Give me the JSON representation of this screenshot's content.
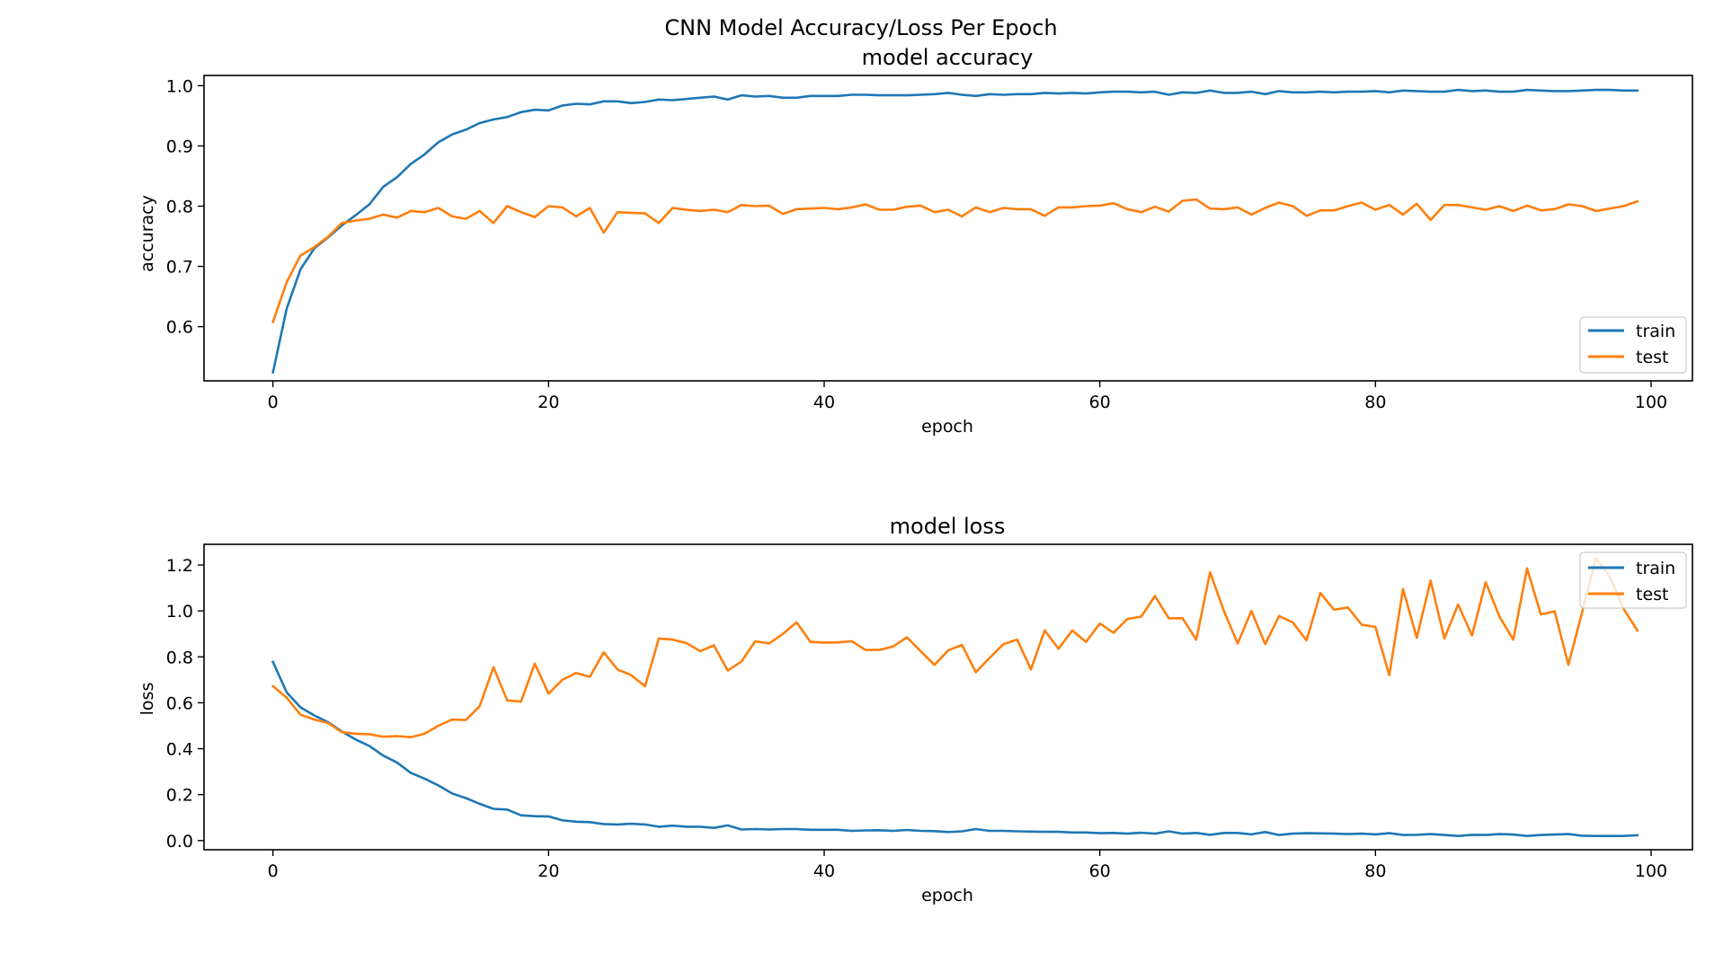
{
  "figure_title": "CNN Model Accuracy/Loss Per Epoch",
  "chart_data": [
    {
      "type": "line",
      "title": "model accuracy",
      "xlabel": "epoch",
      "ylabel": "accuracy",
      "xlim": [
        -5,
        103
      ],
      "ylim": [
        0.51,
        1.017
      ],
      "xticks": [
        0,
        20,
        40,
        60,
        80,
        100
      ],
      "xtick_labels": [
        "0",
        "20",
        "40",
        "60",
        "80",
        "100"
      ],
      "yticks": [
        0.6,
        0.7,
        0.8,
        0.9,
        1.0
      ],
      "ytick_labels": [
        "0.6",
        "0.7",
        "0.8",
        "0.9",
        "1.0"
      ],
      "grid": false,
      "legend_position": "lower-right",
      "x": [
        0,
        1,
        2,
        3,
        4,
        5,
        6,
        7,
        8,
        9,
        10,
        11,
        12,
        13,
        14,
        15,
        16,
        17,
        18,
        19,
        20,
        21,
        22,
        23,
        24,
        25,
        26,
        27,
        28,
        29,
        30,
        31,
        32,
        33,
        34,
        35,
        36,
        37,
        38,
        39,
        40,
        41,
        42,
        43,
        44,
        45,
        46,
        47,
        48,
        49,
        50,
        51,
        52,
        53,
        54,
        55,
        56,
        57,
        58,
        59,
        60,
        61,
        62,
        63,
        64,
        65,
        66,
        67,
        68,
        69,
        70,
        71,
        72,
        73,
        74,
        75,
        76,
        77,
        78,
        79,
        80,
        81,
        82,
        83,
        84,
        85,
        86,
        87,
        88,
        89,
        90,
        91,
        92,
        93,
        94,
        95,
        96,
        97,
        98,
        99
      ],
      "series": [
        {
          "name": "train",
          "color": "#1f77b4",
          "values": [
            0.524,
            0.63,
            0.695,
            0.73,
            0.748,
            0.768,
            0.785,
            0.803,
            0.832,
            0.848,
            0.87,
            0.886,
            0.906,
            0.919,
            0.927,
            0.938,
            0.944,
            0.948,
            0.956,
            0.96,
            0.959,
            0.967,
            0.97,
            0.969,
            0.974,
            0.974,
            0.971,
            0.973,
            0.977,
            0.976,
            0.978,
            0.98,
            0.982,
            0.977,
            0.984,
            0.982,
            0.983,
            0.98,
            0.98,
            0.983,
            0.983,
            0.983,
            0.985,
            0.985,
            0.984,
            0.984,
            0.984,
            0.985,
            0.986,
            0.988,
            0.985,
            0.983,
            0.986,
            0.985,
            0.986,
            0.986,
            0.988,
            0.987,
            0.988,
            0.987,
            0.989,
            0.99,
            0.99,
            0.989,
            0.99,
            0.985,
            0.989,
            0.988,
            0.992,
            0.988,
            0.988,
            0.99,
            0.986,
            0.991,
            0.989,
            0.989,
            0.99,
            0.989,
            0.99,
            0.99,
            0.991,
            0.989,
            0.992,
            0.991,
            0.99,
            0.99,
            0.993,
            0.991,
            0.992,
            0.99,
            0.99,
            0.993,
            0.992,
            0.991,
            0.991,
            0.992,
            0.993,
            0.993,
            0.992,
            0.992
          ]
        },
        {
          "name": "test",
          "color": "#ff7f0e",
          "values": [
            0.608,
            0.674,
            0.718,
            0.732,
            0.749,
            0.772,
            0.776,
            0.779,
            0.786,
            0.781,
            0.792,
            0.79,
            0.797,
            0.783,
            0.779,
            0.792,
            0.772,
            0.8,
            0.79,
            0.782,
            0.8,
            0.798,
            0.783,
            0.797,
            0.756,
            0.79,
            0.789,
            0.788,
            0.772,
            0.797,
            0.794,
            0.792,
            0.794,
            0.79,
            0.802,
            0.8,
            0.801,
            0.787,
            0.795,
            0.796,
            0.797,
            0.795,
            0.798,
            0.803,
            0.794,
            0.794,
            0.799,
            0.801,
            0.79,
            0.794,
            0.783,
            0.798,
            0.79,
            0.797,
            0.795,
            0.795,
            0.784,
            0.798,
            0.798,
            0.8,
            0.801,
            0.805,
            0.795,
            0.79,
            0.799,
            0.791,
            0.809,
            0.811,
            0.796,
            0.795,
            0.798,
            0.786,
            0.797,
            0.806,
            0.8,
            0.784,
            0.793,
            0.793,
            0.8,
            0.806,
            0.794,
            0.802,
            0.786,
            0.804,
            0.777,
            0.802,
            0.802,
            0.798,
            0.794,
            0.8,
            0.792,
            0.801,
            0.793,
            0.795,
            0.803,
            0.8,
            0.792,
            0.796,
            0.8,
            0.808
          ]
        }
      ]
    },
    {
      "type": "line",
      "title": "model loss",
      "xlabel": "epoch",
      "ylabel": "loss",
      "xlim": [
        -5,
        103
      ],
      "ylim": [
        -0.04,
        1.29
      ],
      "xticks": [
        0,
        20,
        40,
        60,
        80,
        100
      ],
      "xtick_labels": [
        "0",
        "20",
        "40",
        "60",
        "80",
        "100"
      ],
      "yticks": [
        0.0,
        0.2,
        0.4,
        0.6,
        0.8,
        1.0,
        1.2
      ],
      "ytick_labels": [
        "0.0",
        "0.2",
        "0.4",
        "0.6",
        "0.8",
        "1.0",
        "1.2"
      ],
      "grid": false,
      "legend_position": "upper-right",
      "x": [
        0,
        1,
        2,
        3,
        4,
        5,
        6,
        7,
        8,
        9,
        10,
        11,
        12,
        13,
        14,
        15,
        16,
        17,
        18,
        19,
        20,
        21,
        22,
        23,
        24,
        25,
        26,
        27,
        28,
        29,
        30,
        31,
        32,
        33,
        34,
        35,
        36,
        37,
        38,
        39,
        40,
        41,
        42,
        43,
        44,
        45,
        46,
        47,
        48,
        49,
        50,
        51,
        52,
        53,
        54,
        55,
        56,
        57,
        58,
        59,
        60,
        61,
        62,
        63,
        64,
        65,
        66,
        67,
        68,
        69,
        70,
        71,
        72,
        73,
        74,
        75,
        76,
        77,
        78,
        79,
        80,
        81,
        82,
        83,
        84,
        85,
        86,
        87,
        88,
        89,
        90,
        91,
        92,
        93,
        94,
        95,
        96,
        97,
        98,
        99
      ],
      "series": [
        {
          "name": "train",
          "color": "#1f77b4",
          "values": [
            0.778,
            0.645,
            0.58,
            0.545,
            0.515,
            0.475,
            0.44,
            0.412,
            0.37,
            0.34,
            0.295,
            0.27,
            0.24,
            0.205,
            0.185,
            0.16,
            0.138,
            0.135,
            0.11,
            0.106,
            0.105,
            0.088,
            0.082,
            0.08,
            0.072,
            0.07,
            0.073,
            0.07,
            0.06,
            0.065,
            0.06,
            0.06,
            0.055,
            0.066,
            0.048,
            0.05,
            0.048,
            0.05,
            0.05,
            0.047,
            0.047,
            0.047,
            0.042,
            0.044,
            0.045,
            0.042,
            0.046,
            0.042,
            0.041,
            0.037,
            0.04,
            0.05,
            0.042,
            0.042,
            0.04,
            0.039,
            0.038,
            0.038,
            0.035,
            0.035,
            0.032,
            0.033,
            0.03,
            0.034,
            0.03,
            0.04,
            0.03,
            0.033,
            0.025,
            0.033,
            0.033,
            0.027,
            0.037,
            0.024,
            0.03,
            0.032,
            0.031,
            0.03,
            0.028,
            0.03,
            0.027,
            0.032,
            0.024,
            0.025,
            0.028,
            0.024,
            0.02,
            0.025,
            0.024,
            0.028,
            0.026,
            0.02,
            0.024,
            0.026,
            0.028,
            0.021,
            0.02,
            0.02,
            0.02,
            0.023
          ]
        },
        {
          "name": "test",
          "color": "#ff7f0e",
          "values": [
            0.672,
            0.622,
            0.548,
            0.527,
            0.512,
            0.472,
            0.465,
            0.463,
            0.452,
            0.455,
            0.45,
            0.465,
            0.5,
            0.527,
            0.525,
            0.585,
            0.755,
            0.61,
            0.605,
            0.77,
            0.64,
            0.7,
            0.73,
            0.713,
            0.82,
            0.745,
            0.72,
            0.672,
            0.88,
            0.875,
            0.86,
            0.825,
            0.85,
            0.74,
            0.78,
            0.868,
            0.858,
            0.9,
            0.95,
            0.865,
            0.862,
            0.863,
            0.868,
            0.83,
            0.83,
            0.845,
            0.885,
            0.825,
            0.765,
            0.828,
            0.852,
            0.733,
            0.795,
            0.855,
            0.875,
            0.745,
            0.915,
            0.835,
            0.915,
            0.865,
            0.945,
            0.905,
            0.965,
            0.975,
            1.065,
            0.968,
            0.968,
            0.875,
            1.168,
            1.0,
            0.858,
            1.0,
            0.855,
            0.978,
            0.95,
            0.872,
            1.078,
            1.005,
            1.015,
            0.94,
            0.93,
            0.72,
            1.095,
            0.883,
            1.132,
            0.88,
            1.028,
            0.893,
            1.125,
            0.975,
            0.875,
            1.185,
            0.985,
            0.998,
            0.765,
            0.995,
            1.23,
            1.15,
            1.01,
            0.915
          ]
        }
      ]
    }
  ]
}
